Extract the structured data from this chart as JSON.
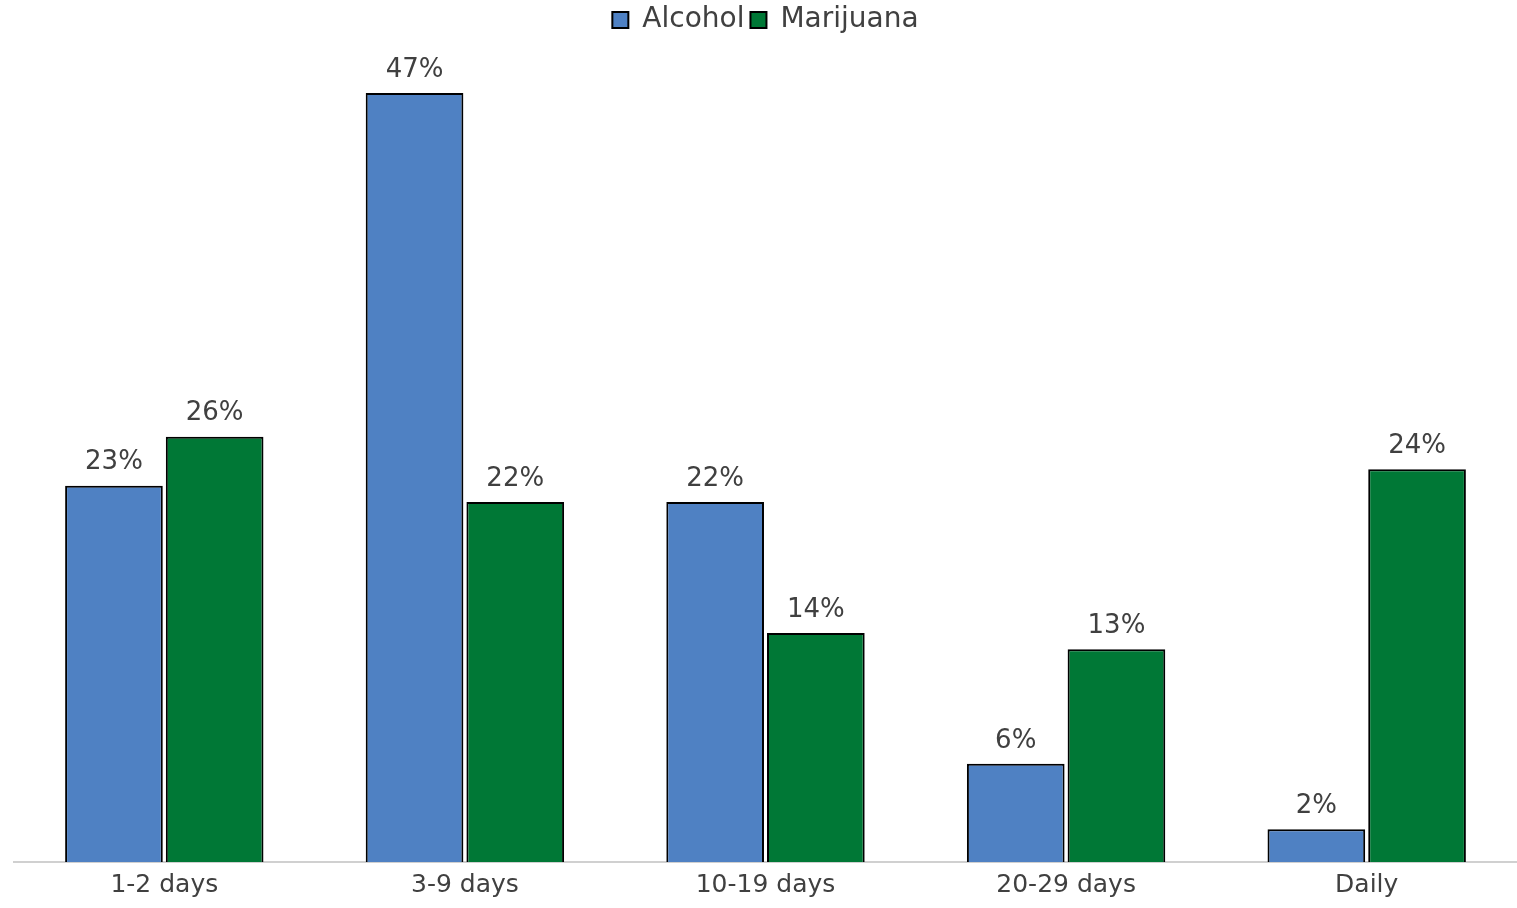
{
  "chart_data": {
    "type": "bar",
    "categories": [
      "1-2 days",
      "3-9 days",
      "10-19 days",
      "20-29 days",
      "Daily"
    ],
    "series": [
      {
        "name": "Alcohol",
        "color": "#4f81c3",
        "values": [
          23,
          47,
          22,
          6,
          2
        ],
        "value_labels": [
          "23%",
          "47%",
          "22%",
          "6%",
          "2%"
        ]
      },
      {
        "name": "Marijuana",
        "color": "#007836",
        "values": [
          26,
          22,
          14,
          13,
          24
        ],
        "value_labels": [
          "26%",
          "22%",
          "14%",
          "13%",
          "24%"
        ]
      }
    ],
    "legend": "top",
    "grid": false,
    "tick_labels": "x"
  }
}
